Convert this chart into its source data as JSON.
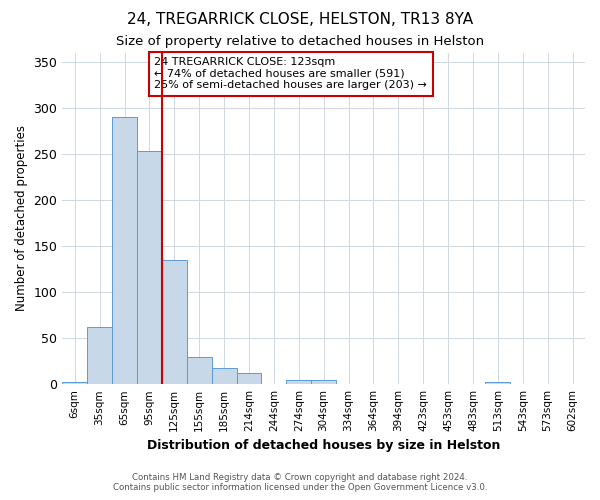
{
  "title1": "24, TREGARRICK CLOSE, HELSTON, TR13 8YA",
  "title2": "Size of property relative to detached houses in Helston",
  "xlabel": "Distribution of detached houses by size in Helston",
  "ylabel": "Number of detached properties",
  "footnote1": "Contains HM Land Registry data © Crown copyright and database right 2024.",
  "footnote2": "Contains public sector information licensed under the Open Government Licence v3.0.",
  "annotation_line1": "24 TREGARRICK CLOSE: 123sqm",
  "annotation_line2": "← 74% of detached houses are smaller (591)",
  "annotation_line3": "25% of semi-detached houses are larger (203) →",
  "bar_labels": [
    "6sqm",
    "35sqm",
    "65sqm",
    "95sqm",
    "125sqm",
    "155sqm",
    "185sqm",
    "214sqm",
    "244sqm",
    "274sqm",
    "304sqm",
    "334sqm",
    "364sqm",
    "394sqm",
    "423sqm",
    "453sqm",
    "483sqm",
    "513sqm",
    "543sqm",
    "573sqm",
    "602sqm"
  ],
  "bar_values": [
    2,
    62,
    290,
    253,
    135,
    30,
    18,
    12,
    0,
    5,
    5,
    0,
    0,
    0,
    0,
    0,
    0,
    2,
    0,
    0,
    0
  ],
  "bar_color": "#c7d9e8",
  "bar_edge_color": "#5b9bd5",
  "red_line_index": 4,
  "red_line_color": "#cc0000",
  "annotation_box_color": "#ffffff",
  "annotation_box_edge": "#cc0000",
  "ylim": [
    0,
    360
  ],
  "yticks": [
    0,
    50,
    100,
    150,
    200,
    250,
    300,
    350
  ],
  "background_color": "#ffffff",
  "grid_color": "#d0d8e0"
}
